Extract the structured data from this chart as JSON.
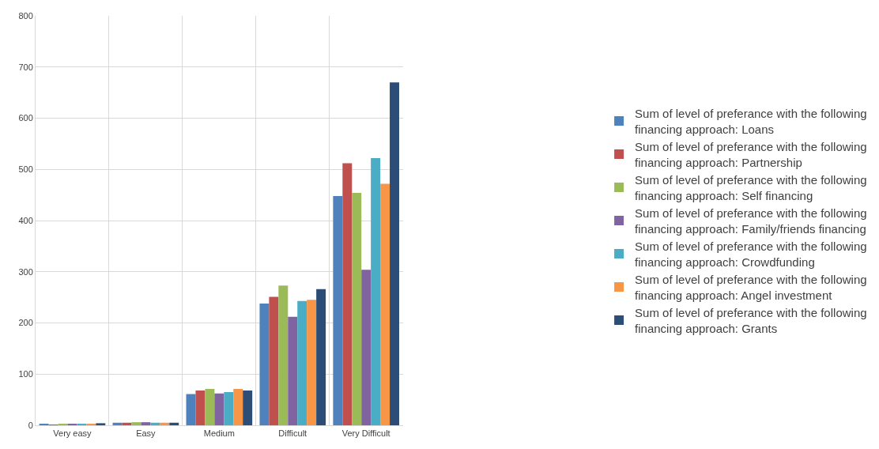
{
  "chart_data": {
    "type": "bar",
    "categories": [
      "Very easy",
      "Easy",
      "Medium",
      "Difficult",
      "Very Difficult"
    ],
    "series": [
      {
        "name": "Sum of level of preferance with the following financing approach: Loans",
        "color": "#4f81bd",
        "values": [
          3,
          5,
          61,
          238,
          448
        ]
      },
      {
        "name": "Sum of level of preferance with the following financing approach: Partnership",
        "color": "#c0504d",
        "values": [
          1,
          5,
          68,
          251,
          512
        ]
      },
      {
        "name": "Sum of level of preferance with the following financing approach: Self financing",
        "color": "#9bbb59",
        "values": [
          2,
          6,
          71,
          273,
          454
        ]
      },
      {
        "name": "Sum of level of preferance with the following financing approach: Family/friends financing",
        "color": "#8064a2",
        "values": [
          2,
          6,
          62,
          212,
          304
        ]
      },
      {
        "name": "Sum of level of preferance with the following financing approach: Crowdfunding",
        "color": "#4bacc6",
        "values": [
          2,
          5,
          65,
          243,
          522
        ]
      },
      {
        "name": "Sum of level of preferance with the following financing approach: Angel investment",
        "color": "#f79646",
        "values": [
          2,
          5,
          71,
          245,
          472
        ]
      },
      {
        "name": "Sum of level of preferance with the following financing approach: Grants",
        "color": "#2c4d75",
        "values": [
          4,
          5,
          68,
          266,
          670
        ]
      }
    ],
    "ylim": [
      0,
      800
    ],
    "yticks": [
      0,
      100,
      200,
      300,
      400,
      500,
      600,
      700,
      800
    ],
    "grid": true,
    "legend": "right"
  }
}
